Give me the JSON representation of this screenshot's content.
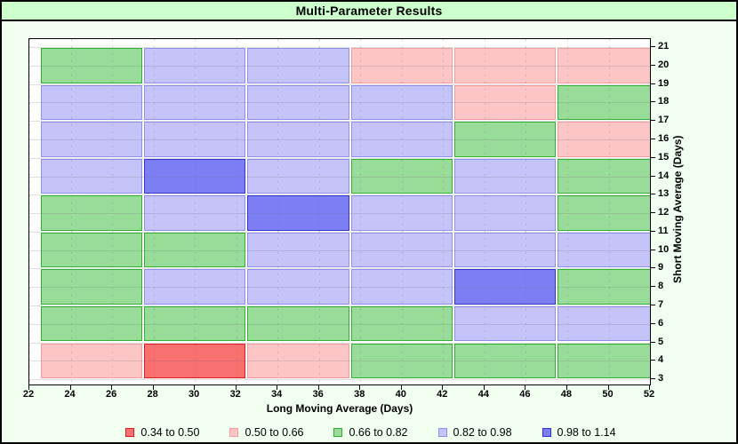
{
  "window": {
    "title": "Multi-Parameter Results"
  },
  "chart_data": {
    "type": "heatmap",
    "title": "Multi-Parameter Results",
    "xlabel": "Long Moving Average (Days)",
    "ylabel": "Short Moving Average (Days)",
    "x_range": [
      22,
      52
    ],
    "y_range": [
      3,
      21
    ],
    "x_ticks": [
      22,
      24,
      26,
      28,
      30,
      32,
      34,
      36,
      38,
      40,
      42,
      44,
      46,
      48,
      50,
      52
    ],
    "y_ticks": [
      3,
      4,
      5,
      6,
      7,
      8,
      9,
      10,
      11,
      12,
      13,
      14,
      15,
      16,
      17,
      18,
      19,
      20,
      21
    ],
    "grid_on": true,
    "legend_position": "bottom",
    "column_x_centers": [
      25,
      30,
      35,
      40,
      45,
      50
    ],
    "row_y_centers_top_to_bottom": [
      20,
      18,
      16,
      14,
      12,
      10,
      8,
      6,
      4
    ],
    "cell_span": {
      "x": 5,
      "y": 2
    },
    "buckets": [
      {
        "label": "0.34 to 0.50",
        "fill": "#F87070",
        "border": "#E01C1C"
      },
      {
        "label": "0.50 to 0.66",
        "fill": "#FCC6C6",
        "border": "#F49C9C"
      },
      {
        "label": "0.66 to 0.82",
        "fill": "#99DC99",
        "border": "#2FB22F"
      },
      {
        "label": "0.82 to 0.98",
        "fill": "#C4C4F8",
        "border": "#8F8FEE"
      },
      {
        "label": "0.98 to 1.14",
        "fill": "#7E7EF4",
        "border": "#3232CE"
      }
    ],
    "grid_bucket_index_rows_top_to_bottom": [
      [
        2,
        3,
        3,
        1,
        1,
        1
      ],
      [
        3,
        3,
        3,
        3,
        1,
        2
      ],
      [
        3,
        3,
        3,
        3,
        2,
        1
      ],
      [
        3,
        4,
        3,
        2,
        3,
        2
      ],
      [
        2,
        3,
        4,
        3,
        3,
        2
      ],
      [
        2,
        2,
        3,
        3,
        3,
        3
      ],
      [
        2,
        3,
        3,
        3,
        4,
        2
      ],
      [
        2,
        2,
        2,
        2,
        3,
        3
      ],
      [
        1,
        0,
        1,
        2,
        2,
        2
      ]
    ]
  },
  "colors": {
    "page_bg": "#F0FFF0",
    "titlebar_bg": "#CCFFCC",
    "plot_bg": "#FFFFFF",
    "frame_border": "#000000"
  }
}
